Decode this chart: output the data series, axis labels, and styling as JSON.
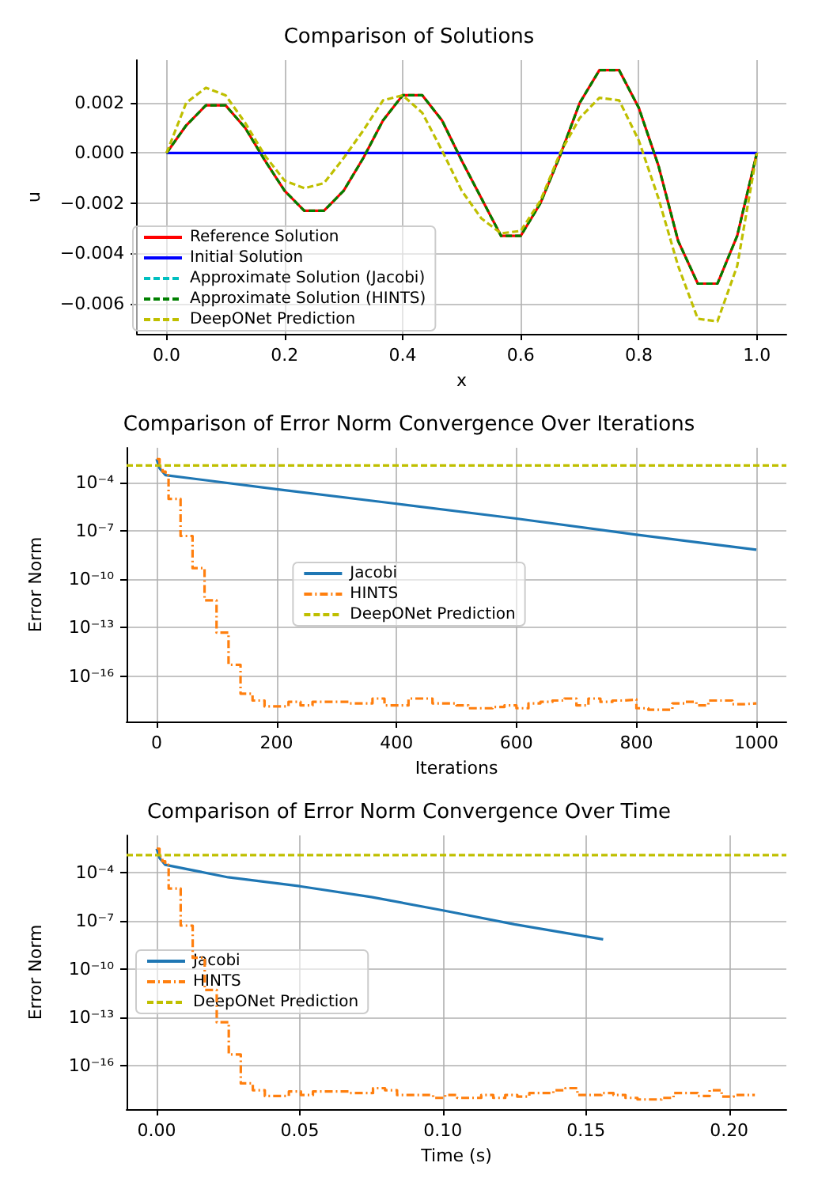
{
  "chart_data": [
    {
      "type": "line",
      "title": "Comparison of Solutions",
      "xlabel": "x",
      "ylabel": "u",
      "x": [
        0,
        0.0333,
        0.0667,
        0.1,
        0.1333,
        0.1667,
        0.2,
        0.2333,
        0.2667,
        0.3,
        0.3333,
        0.3667,
        0.4,
        0.4333,
        0.4667,
        0.5,
        0.5333,
        0.5667,
        0.6,
        0.6333,
        0.6667,
        0.7,
        0.7333,
        0.7667,
        0.8,
        0.8333,
        0.8667,
        0.9,
        0.9333,
        0.9667,
        1.0
      ],
      "series": [
        {
          "name": "Reference Solution",
          "color": "#ff0000",
          "line_style": "solid",
          "values": [
            0,
            0.0011,
            0.0019,
            0.0019,
            0.001,
            -0.0003,
            -0.0015,
            -0.0023,
            -0.0023,
            -0.0015,
            -0.0002,
            0.0013,
            0.0023,
            0.0023,
            0.0013,
            -0.0003,
            -0.0018,
            -0.0033,
            -0.0033,
            -0.002,
            -0.0001,
            0.002,
            0.0033,
            0.0033,
            0.0018,
            -0.0005,
            -0.0035,
            -0.0052,
            -0.0052,
            -0.0033,
            0
          ]
        },
        {
          "name": "Initial Solution",
          "color": "#0000ff",
          "line_style": "solid",
          "values": [
            0,
            0,
            0,
            0,
            0,
            0,
            0,
            0,
            0,
            0,
            0,
            0,
            0,
            0,
            0,
            0,
            0,
            0,
            0,
            0,
            0,
            0,
            0,
            0,
            0,
            0,
            0,
            0,
            0,
            0,
            0
          ]
        },
        {
          "name": "Approximate Solution (Jacobi)",
          "color": "#00bfbf",
          "line_style": "dashed",
          "values": [
            null,
            null,
            null,
            null,
            null,
            null,
            null,
            null,
            null,
            null,
            null,
            null,
            null,
            null,
            null,
            null,
            null,
            null,
            null,
            null,
            null,
            null,
            null,
            null,
            null,
            null,
            null,
            null,
            null,
            null,
            null
          ]
        },
        {
          "name": "Approximate Solution (HINTS)",
          "color": "#008000",
          "line_style": "dashed",
          "values": [
            0,
            0.0011,
            0.0019,
            0.0019,
            0.001,
            -0.0003,
            -0.0015,
            -0.0023,
            -0.0023,
            -0.0015,
            -0.0002,
            0.0013,
            0.0023,
            0.0023,
            0.0013,
            -0.0003,
            -0.0018,
            -0.0033,
            -0.0033,
            -0.002,
            -0.0001,
            0.002,
            0.0033,
            0.0033,
            0.0018,
            -0.0005,
            -0.0035,
            -0.0052,
            -0.0052,
            -0.0033,
            0
          ]
        },
        {
          "name": "DeepONet Prediction",
          "color": "#bfbf00",
          "line_style": "dashed",
          "values": [
            0,
            0.002,
            0.0026,
            0.0023,
            0.0012,
            -0.0001,
            -0.0011,
            -0.0014,
            -0.0012,
            -0.0002,
            0.0009,
            0.0021,
            0.0023,
            0.0016,
            0.0001,
            -0.0015,
            -0.0026,
            -0.0032,
            -0.0031,
            -0.0019,
            0,
            0.0014,
            0.0022,
            0.0021,
            0.0005,
            -0.0018,
            -0.0045,
            -0.0066,
            -0.0067,
            -0.0045,
            0
          ]
        }
      ],
      "xlim": [
        -0.05,
        1.05
      ],
      "xticks": [
        {
          "value": 0,
          "label": "0.0"
        },
        {
          "value": 0.2,
          "label": "0.2"
        },
        {
          "value": 0.4,
          "label": "0.4"
        },
        {
          "value": 0.6,
          "label": "0.6"
        },
        {
          "value": 0.8,
          "label": "0.8"
        },
        {
          "value": 1.0,
          "label": "1.0"
        }
      ],
      "ylim": [
        -0.0072,
        0.0037
      ],
      "yticks": [
        {
          "value": -0.006,
          "label": "−0.006"
        },
        {
          "value": -0.004,
          "label": "−0.004"
        },
        {
          "value": -0.002,
          "label": "−0.002"
        },
        {
          "value": 0,
          "label": "0.000"
        },
        {
          "value": 0.002,
          "label": "0.002"
        }
      ],
      "grid": true,
      "legend": "lower left"
    },
    {
      "type": "line",
      "title": "Comparison of Error Norm Convergence Over Iterations",
      "xlabel": "Iterations",
      "ylabel": "Error Norm",
      "log": "y",
      "series": [
        {
          "name": "Jacobi",
          "color": "#1f77b4",
          "line_style": "solid",
          "x": [
            0,
            5,
            15,
            200,
            400,
            600,
            800,
            1000
          ],
          "values": [
            0.003,
            0.0008,
            0.0003,
            4e-05,
            5e-06,
            6e-07,
            6e-08,
            7e-09
          ]
        },
        {
          "name": "HINTS",
          "type": "step",
          "color": "#ff7f0e",
          "line_style": "dashdot",
          "x": [
            0,
            5,
            10,
            15,
            20,
            40,
            60,
            80,
            100,
            120,
            140,
            160,
            180,
            200,
            220,
            240,
            260,
            280,
            300,
            320,
            340,
            360,
            380,
            400,
            420,
            440,
            460,
            480,
            500,
            520,
            540,
            560,
            580,
            600,
            620,
            640,
            660,
            680,
            700,
            720,
            740,
            760,
            780,
            800,
            820,
            840,
            860,
            880,
            900,
            920,
            940,
            960,
            980,
            1000
          ],
          "values": [
            0.003,
            0.001,
            0.0005,
            0.0003,
            1e-05,
            5e-08,
            5e-10,
            5e-12,
            5e-14,
            5e-16,
            8e-18,
            3e-18,
            1.3e-18,
            1.3e-18,
            2.5e-18,
            1.5e-18,
            2.5e-18,
            2.5e-18,
            2.5e-18,
            2e-18,
            2e-18,
            4e-18,
            1.5e-18,
            1.5e-18,
            4e-18,
            4e-18,
            2e-18,
            2e-18,
            1.5e-18,
            1e-18,
            1e-18,
            1.2e-18,
            1.5e-18,
            1e-18,
            2e-18,
            2.5e-18,
            3e-18,
            4e-18,
            1.5e-18,
            4e-18,
            2.5e-18,
            3e-18,
            3.5e-18,
            1e-18,
            8e-19,
            8e-19,
            2e-18,
            2.5e-18,
            1.5e-18,
            3e-18,
            3e-18,
            1.8e-18,
            2e-18,
            2e-18
          ]
        }
      ],
      "ref_lines": [
        {
          "axis": "y",
          "value": 0.0012,
          "label": "DeepONet Prediction",
          "color": "#bfbf00",
          "line_style": "dashed"
        }
      ],
      "xlim": [
        -50,
        1050
      ],
      "xticks": [
        0,
        200,
        400,
        600,
        800,
        1000
      ],
      "ylim": [
        1.5e-19,
        0.015
      ],
      "yticks": [
        {
          "value": 1e-16,
          "label": "10⁻¹⁶"
        },
        {
          "value": 1e-13,
          "label": "10⁻¹³"
        },
        {
          "value": 1e-10,
          "label": "10⁻¹⁰"
        },
        {
          "value": 1e-07,
          "label": "10⁻⁷"
        },
        {
          "value": 0.0001,
          "label": "10⁻⁴"
        }
      ],
      "grid": true,
      "legend": "center"
    },
    {
      "type": "line",
      "title": "Comparison of Error Norm Convergence Over Time",
      "xlabel": "Time (s)",
      "ylabel": "Error Norm",
      "log": "y",
      "series": [
        {
          "name": "Jacobi",
          "color": "#1f77b4",
          "line_style": "solid",
          "x": [
            0,
            0.001,
            0.003,
            0.025,
            0.05,
            0.075,
            0.1,
            0.125,
            0.156
          ],
          "values": [
            0.003,
            0.0008,
            0.0003,
            5e-05,
            1.4e-05,
            3e-06,
            4.4e-07,
            6e-08,
            7e-09
          ]
        },
        {
          "name": "HINTS",
          "type": "step",
          "color": "#ff7f0e",
          "line_style": "dashdot",
          "x": [
            0,
            0.001,
            0.002,
            0.003,
            0.0042,
            0.0084,
            0.0126,
            0.0168,
            0.021,
            0.0252,
            0.0294,
            0.0336,
            0.0378,
            0.042,
            0.0462,
            0.0504,
            0.0546,
            0.0588,
            0.063,
            0.0672,
            0.0714,
            0.0756,
            0.0798,
            0.084,
            0.0882,
            0.0924,
            0.0966,
            0.1008,
            0.105,
            0.1092,
            0.1134,
            0.1176,
            0.1218,
            0.126,
            0.1302,
            0.1344,
            0.1386,
            0.1428,
            0.147,
            0.1512,
            0.1554,
            0.1596,
            0.1638,
            0.168,
            0.1722,
            0.1764,
            0.1806,
            0.1848,
            0.189,
            0.1932,
            0.1974,
            0.2016,
            0.2058,
            0.209
          ],
          "values": [
            0.003,
            0.001,
            0.0005,
            0.0003,
            1e-05,
            5e-08,
            5e-10,
            5e-12,
            5e-14,
            5e-16,
            8e-18,
            3e-18,
            1.3e-18,
            1.3e-18,
            2.5e-18,
            1.5e-18,
            2.5e-18,
            2.5e-18,
            2.5e-18,
            2e-18,
            2e-18,
            4e-18,
            3e-18,
            1.5e-18,
            1.5e-18,
            1.5e-18,
            1e-18,
            1.5e-18,
            1e-18,
            1e-18,
            1.5e-18,
            1e-18,
            1.5e-18,
            1.2e-18,
            2e-18,
            2e-18,
            3e-18,
            4e-18,
            1.5e-18,
            1.5e-18,
            2e-18,
            1.5e-18,
            1e-18,
            8e-19,
            8e-19,
            1e-18,
            2e-18,
            2e-18,
            1.3e-18,
            3e-18,
            1.2e-18,
            1.5e-18,
            1.5e-18,
            1.5e-18
          ]
        }
      ],
      "ref_lines": [
        {
          "axis": "y",
          "value": 0.0012,
          "label": "DeepONet Prediction",
          "color": "#bfbf00",
          "line_style": "dashed"
        }
      ],
      "xlim": [
        -0.0105,
        0.22
      ],
      "xticks": [
        {
          "value": 0,
          "label": "0.00"
        },
        {
          "value": 0.05,
          "label": "0.05"
        },
        {
          "value": 0.1,
          "label": "0.10"
        },
        {
          "value": 0.15,
          "label": "0.15"
        },
        {
          "value": 0.2,
          "label": "0.20"
        }
      ],
      "ylim": [
        2e-19,
        0.02
      ],
      "yticks": [
        {
          "value": 1e-16,
          "label": "10⁻¹⁶"
        },
        {
          "value": 1e-13,
          "label": "10⁻¹³"
        },
        {
          "value": 1e-10,
          "label": "10⁻¹⁰"
        },
        {
          "value": 1e-07,
          "label": "10⁻⁷"
        },
        {
          "value": 0.0001,
          "label": "10⁻⁴"
        }
      ],
      "grid": true,
      "legend": "center left"
    }
  ]
}
